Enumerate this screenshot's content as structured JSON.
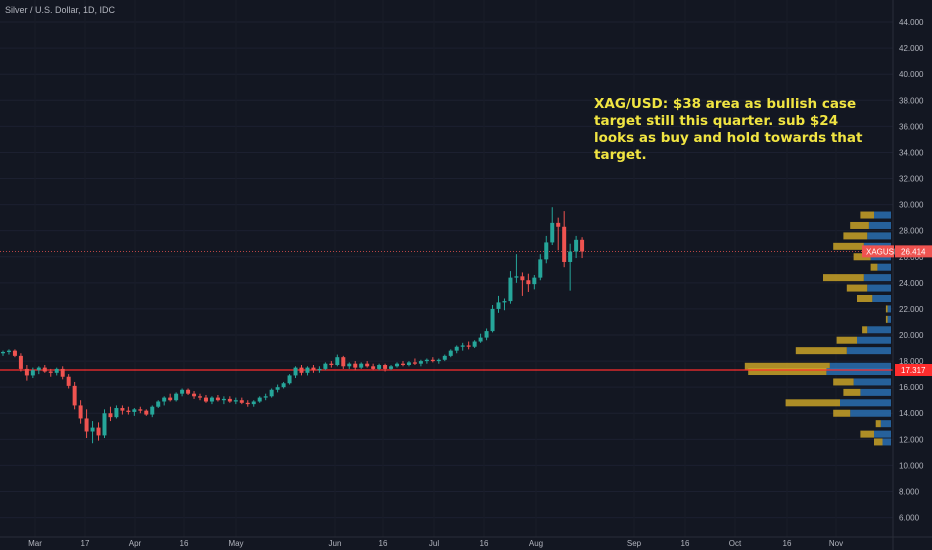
{
  "header": {
    "title": "Silver / U.S. Dollar, 1D, IDC"
  },
  "annotation": {
    "lines": [
      "XAG/USD: $38 area as bullish case",
      "target still this quarter. sub $24",
      "looks as buy and hold towards that",
      "target."
    ]
  },
  "colors": {
    "background": "#131722",
    "up": "#26a69a",
    "down": "#ef5350",
    "annotation": "#f0e442",
    "support_line": "#ff2d2d",
    "vp_blue": "#2a6fb0",
    "vp_gold": "#c9a227"
  },
  "chart_data": {
    "type": "candlestick",
    "title": "Silver / U.S. Dollar, 1D, IDC",
    "symbol": "XAGUSD",
    "y_axis": {
      "ticks": [
        "6.000",
        "8.000",
        "10.000",
        "12.000",
        "14.000",
        "16.000",
        "18.000",
        "20.000",
        "22.000",
        "24.000",
        "26.000",
        "28.000",
        "30.000",
        "32.000",
        "34.000",
        "36.000",
        "38.000",
        "40.000",
        "42.000",
        "44.000"
      ],
      "ylim": [
        5.2,
        45
      ]
    },
    "x_axis": {
      "ticks": [
        "Mar",
        "17",
        "Apr",
        "16",
        "May",
        "Jun",
        "16",
        "Jul",
        "16",
        "Aug",
        "Sep",
        "16",
        "Oct",
        "16",
        "Nov"
      ]
    },
    "last_price": {
      "label": "XAGUSD",
      "value": "26.414"
    },
    "support": {
      "value": "17.317"
    },
    "ohlc": [
      [
        18.6,
        18.8,
        18.4,
        18.7
      ],
      [
        18.7,
        18.9,
        18.5,
        18.8
      ],
      [
        18.8,
        18.9,
        18.3,
        18.4
      ],
      [
        18.4,
        18.6,
        17.2,
        17.4
      ],
      [
        17.4,
        17.7,
        16.5,
        16.9
      ],
      [
        16.9,
        17.5,
        16.7,
        17.3
      ],
      [
        17.3,
        17.6,
        17.0,
        17.5
      ],
      [
        17.5,
        17.7,
        17.1,
        17.2
      ],
      [
        17.2,
        17.4,
        16.8,
        17.1
      ],
      [
        17.1,
        17.5,
        16.9,
        17.4
      ],
      [
        17.4,
        17.6,
        16.6,
        16.8
      ],
      [
        16.8,
        17.0,
        15.9,
        16.1
      ],
      [
        16.1,
        16.4,
        14.3,
        14.6
      ],
      [
        14.6,
        15.0,
        13.2,
        13.6
      ],
      [
        13.6,
        14.3,
        12.1,
        12.6
      ],
      [
        12.6,
        13.4,
        11.7,
        12.9
      ],
      [
        12.9,
        13.3,
        11.9,
        12.3
      ],
      [
        12.3,
        14.3,
        12.1,
        14.0
      ],
      [
        14.0,
        14.5,
        13.4,
        13.7
      ],
      [
        13.7,
        14.6,
        13.6,
        14.4
      ],
      [
        14.4,
        14.6,
        13.9,
        14.2
      ],
      [
        14.2,
        14.5,
        13.9,
        14.1
      ],
      [
        14.1,
        14.4,
        13.8,
        14.3
      ],
      [
        14.3,
        14.5,
        14.0,
        14.2
      ],
      [
        14.2,
        14.3,
        13.8,
        13.9
      ],
      [
        13.9,
        14.6,
        13.7,
        14.5
      ],
      [
        14.5,
        15.0,
        14.4,
        14.9
      ],
      [
        14.9,
        15.3,
        14.6,
        15.2
      ],
      [
        15.2,
        15.5,
        14.9,
        15.0
      ],
      [
        15.0,
        15.6,
        14.9,
        15.5
      ],
      [
        15.5,
        15.9,
        15.3,
        15.8
      ],
      [
        15.8,
        15.9,
        15.4,
        15.5
      ],
      [
        15.5,
        15.7,
        15.1,
        15.3
      ],
      [
        15.3,
        15.5,
        15.0,
        15.2
      ],
      [
        15.2,
        15.4,
        14.8,
        14.9
      ],
      [
        14.9,
        15.3,
        14.7,
        15.2
      ],
      [
        15.2,
        15.4,
        14.9,
        15.0
      ],
      [
        15.0,
        15.3,
        14.7,
        15.1
      ],
      [
        15.1,
        15.3,
        14.8,
        14.9
      ],
      [
        14.9,
        15.2,
        14.7,
        15.0
      ],
      [
        15.0,
        15.2,
        14.7,
        14.8
      ],
      [
        14.8,
        15.0,
        14.5,
        14.7
      ],
      [
        14.7,
        15.0,
        14.5,
        14.9
      ],
      [
        14.9,
        15.3,
        14.8,
        15.2
      ],
      [
        15.2,
        15.5,
        15.0,
        15.3
      ],
      [
        15.3,
        15.9,
        15.2,
        15.8
      ],
      [
        15.8,
        16.2,
        15.6,
        16.0
      ],
      [
        16.0,
        16.4,
        15.9,
        16.3
      ],
      [
        16.3,
        17.0,
        16.2,
        16.9
      ],
      [
        16.9,
        17.6,
        16.7,
        17.5
      ],
      [
        17.5,
        17.7,
        16.9,
        17.1
      ],
      [
        17.1,
        17.6,
        16.9,
        17.5
      ],
      [
        17.5,
        17.7,
        17.1,
        17.3
      ],
      [
        17.3,
        17.6,
        17.1,
        17.4
      ],
      [
        17.4,
        17.9,
        17.3,
        17.8
      ],
      [
        17.8,
        18.0,
        17.5,
        17.7
      ],
      [
        17.7,
        18.5,
        17.6,
        18.3
      ],
      [
        18.3,
        18.4,
        17.4,
        17.6
      ],
      [
        17.6,
        17.9,
        17.4,
        17.8
      ],
      [
        17.8,
        18.0,
        17.3,
        17.5
      ],
      [
        17.5,
        17.9,
        17.4,
        17.8
      ],
      [
        17.8,
        18.0,
        17.5,
        17.6
      ],
      [
        17.6,
        17.8,
        17.3,
        17.4
      ],
      [
        17.4,
        17.8,
        17.3,
        17.7
      ],
      [
        17.7,
        17.8,
        17.2,
        17.4
      ],
      [
        17.4,
        17.7,
        17.3,
        17.6
      ],
      [
        17.6,
        17.9,
        17.5,
        17.8
      ],
      [
        17.8,
        18.0,
        17.6,
        17.7
      ],
      [
        17.7,
        18.0,
        17.6,
        17.9
      ],
      [
        17.9,
        18.2,
        17.7,
        17.8
      ],
      [
        17.8,
        18.1,
        17.6,
        18.0
      ],
      [
        18.0,
        18.2,
        17.8,
        18.1
      ],
      [
        18.1,
        18.3,
        17.9,
        18.0
      ],
      [
        18.0,
        18.2,
        17.8,
        18.1
      ],
      [
        18.1,
        18.5,
        18.0,
        18.4
      ],
      [
        18.4,
        18.9,
        18.3,
        18.8
      ],
      [
        18.8,
        19.2,
        18.6,
        19.1
      ],
      [
        19.1,
        19.4,
        18.8,
        19.2
      ],
      [
        19.2,
        19.5,
        18.9,
        19.1
      ],
      [
        19.1,
        19.6,
        19.0,
        19.5
      ],
      [
        19.5,
        20.1,
        19.4,
        19.8
      ],
      [
        19.8,
        20.5,
        19.6,
        20.3
      ],
      [
        20.3,
        22.3,
        20.2,
        22.0
      ],
      [
        22.0,
        23.0,
        21.7,
        22.5
      ],
      [
        22.5,
        22.8,
        21.9,
        22.6
      ],
      [
        22.6,
        24.9,
        22.4,
        24.4
      ],
      [
        24.4,
        26.2,
        24.0,
        24.5
      ],
      [
        24.5,
        24.8,
        23.0,
        24.2
      ],
      [
        24.2,
        24.7,
        23.3,
        23.9
      ],
      [
        23.9,
        24.6,
        23.5,
        24.4
      ],
      [
        24.4,
        26.2,
        24.2,
        25.8
      ],
      [
        25.8,
        27.6,
        25.5,
        27.1
      ],
      [
        27.1,
        29.8,
        26.9,
        28.6
      ],
      [
        28.6,
        29.0,
        26.5,
        28.3
      ],
      [
        28.3,
        29.5,
        25.2,
        25.6
      ],
      [
        25.6,
        27.0,
        23.4,
        26.4
      ],
      [
        26.4,
        27.6,
        25.9,
        27.3
      ],
      [
        27.3,
        27.5,
        25.9,
        26.4
      ]
    ],
    "volume_profile": [
      {
        "price": 29.2,
        "blue": 0.1,
        "gold": 0.08
      },
      {
        "price": 28.4,
        "blue": 0.13,
        "gold": 0.11
      },
      {
        "price": 27.6,
        "blue": 0.14,
        "gold": 0.14
      },
      {
        "price": 26.8,
        "blue": 0.16,
        "gold": 0.18
      },
      {
        "price": 26.0,
        "blue": 0.12,
        "gold": 0.1
      },
      {
        "price": 25.2,
        "blue": 0.08,
        "gold": 0.04
      },
      {
        "price": 24.4,
        "blue": 0.16,
        "gold": 0.24
      },
      {
        "price": 23.6,
        "blue": 0.14,
        "gold": 0.12
      },
      {
        "price": 22.8,
        "blue": 0.11,
        "gold": 0.09
      },
      {
        "price": 22.0,
        "blue": 0.02,
        "gold": 0.01
      },
      {
        "price": 21.2,
        "blue": 0.02,
        "gold": 0.01
      },
      {
        "price": 20.4,
        "blue": 0.14,
        "gold": 0.03
      },
      {
        "price": 19.6,
        "blue": 0.2,
        "gold": 0.12
      },
      {
        "price": 18.8,
        "blue": 0.26,
        "gold": 0.3
      },
      {
        "price": 17.6,
        "blue": 0.36,
        "gold": 0.5
      },
      {
        "price": 17.2,
        "blue": 0.38,
        "gold": 0.46
      },
      {
        "price": 16.4,
        "blue": 0.22,
        "gold": 0.12
      },
      {
        "price": 15.6,
        "blue": 0.18,
        "gold": 0.1
      },
      {
        "price": 14.8,
        "blue": 0.3,
        "gold": 0.32
      },
      {
        "price": 14.0,
        "blue": 0.24,
        "gold": 0.1
      },
      {
        "price": 13.2,
        "blue": 0.06,
        "gold": 0.03
      },
      {
        "price": 12.4,
        "blue": 0.1,
        "gold": 0.08
      },
      {
        "price": 11.8,
        "blue": 0.05,
        "gold": 0.05
      }
    ]
  }
}
